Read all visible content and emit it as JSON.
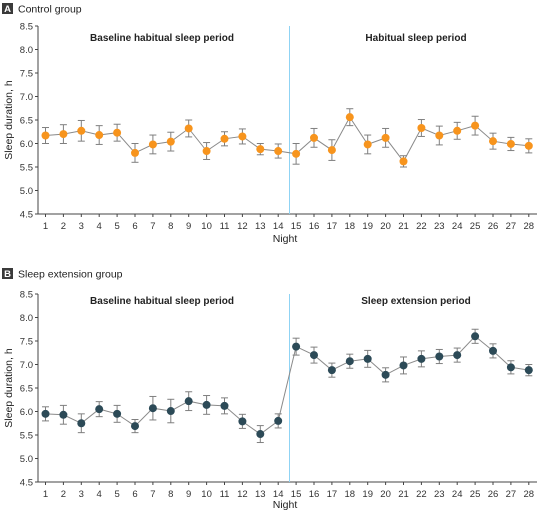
{
  "colors": {
    "control_marker": "#f7941d",
    "extension_marker": "#2c4a57",
    "line": "#8a8a8a",
    "divider": "#8fd3f4",
    "error_bar": "#7f7f7f"
  },
  "chart_data": [
    {
      "type": "line",
      "panel_letter": "A",
      "title": "Control group",
      "xlabel": "Night",
      "ylabel": "Sleep duration, h",
      "ylim": [
        4.5,
        8.5
      ],
      "y_ticks": [
        "4.5",
        "5.0",
        "5.5",
        "6.0",
        "6.5",
        "7.0",
        "7.5",
        "8.0",
        "8.5"
      ],
      "x": [
        1,
        2,
        3,
        4,
        5,
        6,
        7,
        8,
        9,
        10,
        11,
        12,
        13,
        14,
        15,
        16,
        17,
        18,
        19,
        20,
        21,
        22,
        23,
        24,
        25,
        26,
        27,
        28
      ],
      "x_ticks": [
        "1",
        "2",
        "3",
        "4",
        "5",
        "6",
        "7",
        "8",
        "9",
        "10",
        "11",
        "12",
        "13",
        "14",
        "15",
        "16",
        "17",
        "18",
        "19",
        "20",
        "21",
        "22",
        "23",
        "24",
        "25",
        "26",
        "27",
        "28"
      ],
      "values": [
        6.17,
        6.2,
        6.27,
        6.18,
        6.23,
        5.8,
        5.98,
        6.04,
        6.32,
        5.84,
        6.1,
        6.15,
        5.88,
        5.84,
        5.78,
        6.12,
        5.86,
        6.56,
        5.98,
        6.12,
        5.62,
        6.33,
        6.17,
        6.27,
        6.38,
        6.05,
        5.99,
        5.95
      ],
      "errors": [
        0.17,
        0.2,
        0.22,
        0.2,
        0.18,
        0.2,
        0.2,
        0.2,
        0.18,
        0.18,
        0.15,
        0.16,
        0.12,
        0.15,
        0.22,
        0.2,
        0.22,
        0.18,
        0.2,
        0.2,
        0.12,
        0.18,
        0.2,
        0.18,
        0.2,
        0.17,
        0.14,
        0.15
      ],
      "periods": [
        "Baseline habitual sleep period",
        "Habitual sleep period"
      ],
      "divider_x": 14.5,
      "grid": false
    },
    {
      "type": "line",
      "panel_letter": "B",
      "title": "Sleep extension group",
      "xlabel": "Night",
      "ylabel": "Sleep duration, h",
      "ylim": [
        4.5,
        8.5
      ],
      "y_ticks": [
        "4.5",
        "5.0",
        "5.5",
        "6.0",
        "6.5",
        "7.0",
        "7.5",
        "8.0",
        "8.5"
      ],
      "x": [
        1,
        2,
        3,
        4,
        5,
        6,
        7,
        8,
        9,
        10,
        11,
        12,
        13,
        14,
        15,
        16,
        17,
        18,
        19,
        20,
        21,
        22,
        23,
        24,
        25,
        26,
        27,
        28
      ],
      "x_ticks": [
        "1",
        "2",
        "3",
        "4",
        "5",
        "6",
        "7",
        "8",
        "9",
        "10",
        "11",
        "12",
        "13",
        "14",
        "15",
        "16",
        "17",
        "18",
        "19",
        "20",
        "21",
        "22",
        "23",
        "24",
        "25",
        "26",
        "27",
        "28"
      ],
      "values": [
        5.95,
        5.93,
        5.75,
        6.05,
        5.95,
        5.69,
        6.07,
        6.01,
        6.22,
        6.14,
        6.12,
        5.79,
        5.52,
        5.8,
        7.38,
        7.2,
        6.88,
        7.07,
        7.12,
        6.78,
        6.98,
        7.12,
        7.17,
        7.2,
        7.6,
        7.29,
        6.94,
        6.88
      ],
      "errors": [
        0.15,
        0.2,
        0.2,
        0.16,
        0.18,
        0.14,
        0.25,
        0.25,
        0.2,
        0.2,
        0.17,
        0.15,
        0.18,
        0.15,
        0.18,
        0.17,
        0.15,
        0.15,
        0.18,
        0.15,
        0.18,
        0.17,
        0.15,
        0.15,
        0.15,
        0.15,
        0.14,
        0.12
      ],
      "periods": [
        "Baseline habitual sleep period",
        "Sleep extension period"
      ],
      "divider_x": 14.5,
      "grid": false
    }
  ]
}
